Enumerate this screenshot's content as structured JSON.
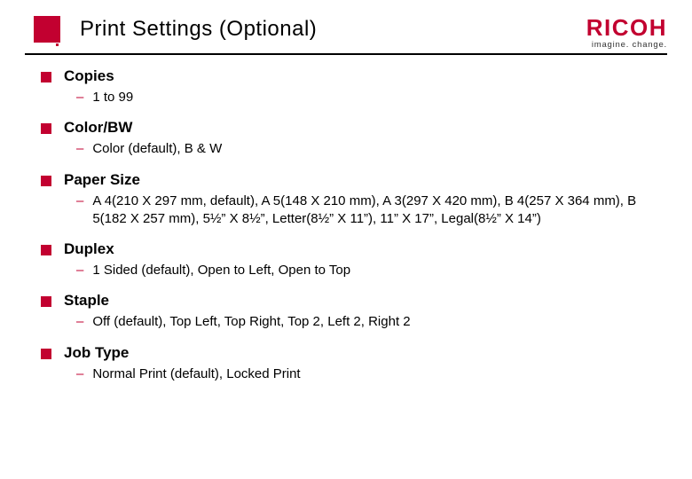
{
  "brand": {
    "logo_text": "RICOH",
    "tagline": "imagine. change.",
    "brand_color": "#c20030"
  },
  "page": {
    "title": "Print Settings (Optional)"
  },
  "settings": [
    {
      "label": "Copies",
      "detail": "1 to 99"
    },
    {
      "label": "Color/BW",
      "detail": "Color (default), B & W"
    },
    {
      "label": "Paper Size",
      "detail": "A 4(210 X 297 mm, default), A 5(148 X 210 mm), A 3(297 X 420 mm), B 4(257 X 364 mm), B 5(182 X 257 mm), 5½” X 8½”, Letter(8½” X 11”), 11” X 17”, Legal(8½” X 14”)"
    },
    {
      "label": "Duplex",
      "detail": "1 Sided (default), Open to Left, Open to Top"
    },
    {
      "label": "Staple",
      "detail": "Off (default), Top Left, Top Right, Top 2, Left 2, Right 2"
    },
    {
      "label": "Job Type",
      "detail": "Normal Print (default), Locked Print"
    }
  ]
}
